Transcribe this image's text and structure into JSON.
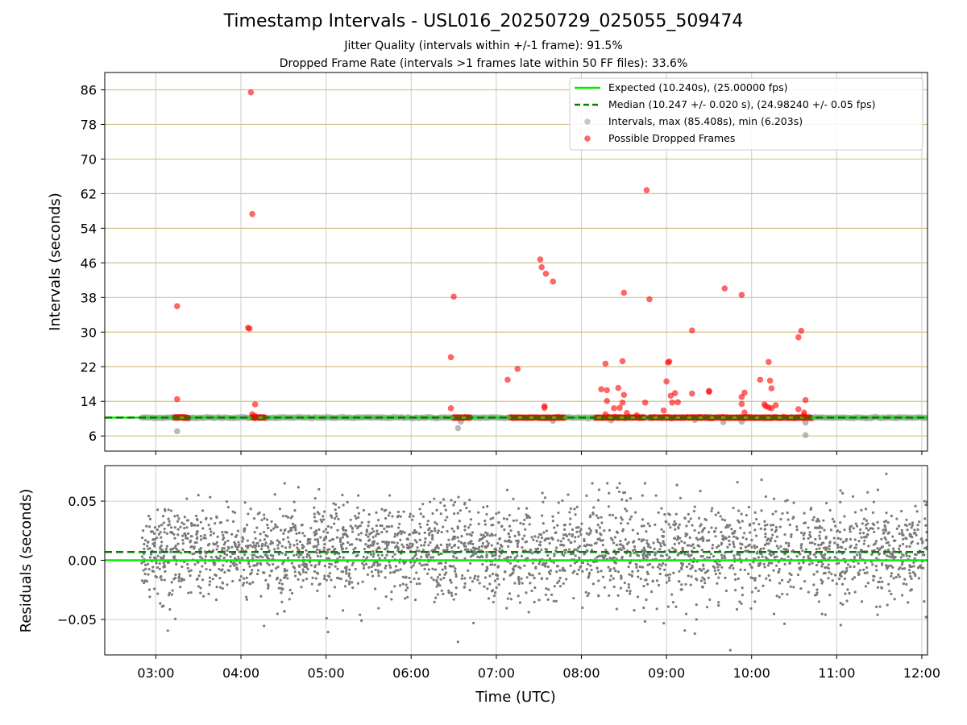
{
  "chart_data": [
    {
      "type": "scatter",
      "title": "Timestamp Intervals - USL016_20250729_025055_509474",
      "subtitle": [
        "Jitter Quality (intervals within +/-1 frame): 91.5%",
        "Dropped Frame Rate (intervals >1 frames late within 50 FF files): 33.6%"
      ],
      "xlabel": "",
      "ylabel": "Intervals (seconds)",
      "xlim": [
        "02:24",
        "12:04"
      ],
      "ylim": [
        2.5,
        90
      ],
      "yticks": [
        6,
        14,
        22,
        30,
        38,
        46,
        54,
        62,
        70,
        78,
        86
      ],
      "grid": true,
      "legend_position": "top-right",
      "colors": {
        "expected": "#00ee00",
        "median": "#008000",
        "intervals": "#a0a0a0",
        "dropped": "#ff0000",
        "hgrid": "#d4c28a",
        "vgrid": "#cccccc"
      },
      "series": [
        {
          "name": "Expected (10.240s), (25.00000 fps)",
          "kind": "hline",
          "y": 10.24
        },
        {
          "name": "Median (10.247 +/- 0.020 s), (24.98240 +/- 0.05 fps)",
          "kind": "hline",
          "y": 10.247,
          "style": "dashed"
        },
        {
          "name": "Intervals, max (85.408s), min (6.203s)",
          "kind": "points",
          "band": {
            "y": 10.24,
            "segments": [
              [
                "02:50",
                "12:04"
              ]
            ]
          },
          "points": [
            [
              "03:15",
              7.1
            ],
            [
              "06:33",
              7.8
            ],
            [
              "06:35",
              9.3
            ],
            [
              "07:40",
              9.5
            ],
            [
              "08:21",
              9.6
            ],
            [
              "09:20",
              9.7
            ],
            [
              "09:40",
              9.2
            ],
            [
              "09:53",
              9.3
            ],
            [
              "10:38",
              6.2
            ],
            [
              "10:38",
              9.1
            ]
          ]
        },
        {
          "name": "Possible Dropped Frames",
          "kind": "points",
          "clusters": [
            [
              "03:13",
              "03:23"
            ],
            [
              "04:08",
              "04:17"
            ],
            [
              "06:30",
              "06:42"
            ],
            [
              "07:10",
              "07:48"
            ],
            [
              "08:10",
              "08:45"
            ],
            [
              "08:48",
              "09:30"
            ],
            [
              "09:30",
              "10:10"
            ],
            [
              "10:10",
              "10:42"
            ]
          ],
          "points": [
            [
              "03:15",
              36.0
            ],
            [
              "03:15",
              14.5
            ],
            [
              "04:05",
              31.0
            ],
            [
              "04:06",
              30.8
            ],
            [
              "04:07",
              85.4
            ],
            [
              "04:08",
              57.3
            ],
            [
              "04:10",
              13.3
            ],
            [
              "04:08",
              11.0
            ],
            [
              "04:10",
              10.6
            ],
            [
              "06:28",
              24.2
            ],
            [
              "06:30",
              38.2
            ],
            [
              "06:28",
              12.4
            ],
            [
              "07:08",
              19.0
            ],
            [
              "07:15",
              21.5
            ],
            [
              "07:31",
              46.8
            ],
            [
              "07:32",
              45.0
            ],
            [
              "07:35",
              43.5
            ],
            [
              "07:40",
              41.7
            ],
            [
              "07:34",
              12.9
            ],
            [
              "07:34",
              12.5
            ],
            [
              "08:14",
              16.8
            ],
            [
              "08:17",
              22.7
            ],
            [
              "08:18",
              16.6
            ],
            [
              "08:18",
              14.1
            ],
            [
              "08:17",
              11.0
            ],
            [
              "08:23",
              12.4
            ],
            [
              "08:26",
              17.1
            ],
            [
              "08:27",
              12.5
            ],
            [
              "08:29",
              13.7
            ],
            [
              "08:30",
              15.5
            ],
            [
              "08:29",
              23.3
            ],
            [
              "08:30",
              39.1
            ],
            [
              "08:32",
              11.3
            ],
            [
              "08:39",
              10.8
            ],
            [
              "08:45",
              13.7
            ],
            [
              "08:46",
              62.8
            ],
            [
              "08:48",
              37.6
            ],
            [
              "08:58",
              11.9
            ],
            [
              "09:01",
              23.0
            ],
            [
              "09:02",
              23.2
            ],
            [
              "09:00",
              18.6
            ],
            [
              "09:03",
              15.3
            ],
            [
              "09:04",
              13.7
            ],
            [
              "09:06",
              15.9
            ],
            [
              "09:08",
              13.8
            ],
            [
              "09:18",
              30.4
            ],
            [
              "09:18",
              15.8
            ],
            [
              "09:30",
              16.4
            ],
            [
              "09:30",
              16.2
            ],
            [
              "09:41",
              40.1
            ],
            [
              "09:53",
              38.6
            ],
            [
              "09:53",
              15.0
            ],
            [
              "09:55",
              16.0
            ],
            [
              "09:53",
              13.4
            ],
            [
              "09:55",
              11.4
            ],
            [
              "10:06",
              19.0
            ],
            [
              "10:09",
              13.3
            ],
            [
              "10:10",
              12.9
            ],
            [
              "10:12",
              23.1
            ],
            [
              "10:13",
              18.8
            ],
            [
              "10:14",
              17.0
            ],
            [
              "10:12",
              12.6
            ],
            [
              "10:14",
              12.4
            ],
            [
              "10:17",
              13.1
            ],
            [
              "10:33",
              28.8
            ],
            [
              "10:35",
              30.3
            ],
            [
              "10:33",
              12.2
            ],
            [
              "10:37",
              11.4
            ],
            [
              "10:38",
              14.3
            ],
            [
              "10:37",
              10.8
            ]
          ]
        }
      ]
    },
    {
      "type": "scatter",
      "xlabel": "Time (UTC)",
      "ylabel": "Residuals (seconds)",
      "xlim": [
        "02:24",
        "12:04"
      ],
      "ylim": [
        -0.08,
        0.08
      ],
      "yticks": [
        {
          "value": 0.05,
          "label": "0.05"
        },
        {
          "value": 0.0,
          "label": "0.00"
        },
        {
          "value": -0.05,
          "label": "−0.05"
        }
      ],
      "xticks": [
        "03:00",
        "04:00",
        "05:00",
        "06:00",
        "07:00",
        "08:00",
        "09:00",
        "10:00",
        "11:00",
        "12:00"
      ],
      "grid": true,
      "series": [
        {
          "name": "Expected",
          "kind": "hline",
          "y": 0.0
        },
        {
          "name": "Median",
          "kind": "hline",
          "y": 0.007,
          "style": "dashed"
        },
        {
          "name": "Residuals",
          "kind": "points",
          "range": [
            "02:50",
            "12:04"
          ],
          "approx_count": 2900,
          "stddev": 0.02,
          "mean": 0.007,
          "outliers": [
            [
              "03:30",
              0.055
            ],
            [
              "04:55",
              0.06
            ],
            [
              "06:33",
              -0.069
            ],
            [
              "08:27",
              0.065
            ],
            [
              "09:45",
              -0.076
            ],
            [
              "09:50",
              0.066
            ],
            [
              "10:07",
              0.068
            ],
            [
              "11:35",
              0.073
            ],
            [
              "10:52",
              -0.046
            ],
            [
              "09:20",
              -0.062
            ],
            [
              "05:25",
              -0.051
            ],
            [
              "12:03",
              -0.048
            ]
          ]
        }
      ]
    }
  ]
}
